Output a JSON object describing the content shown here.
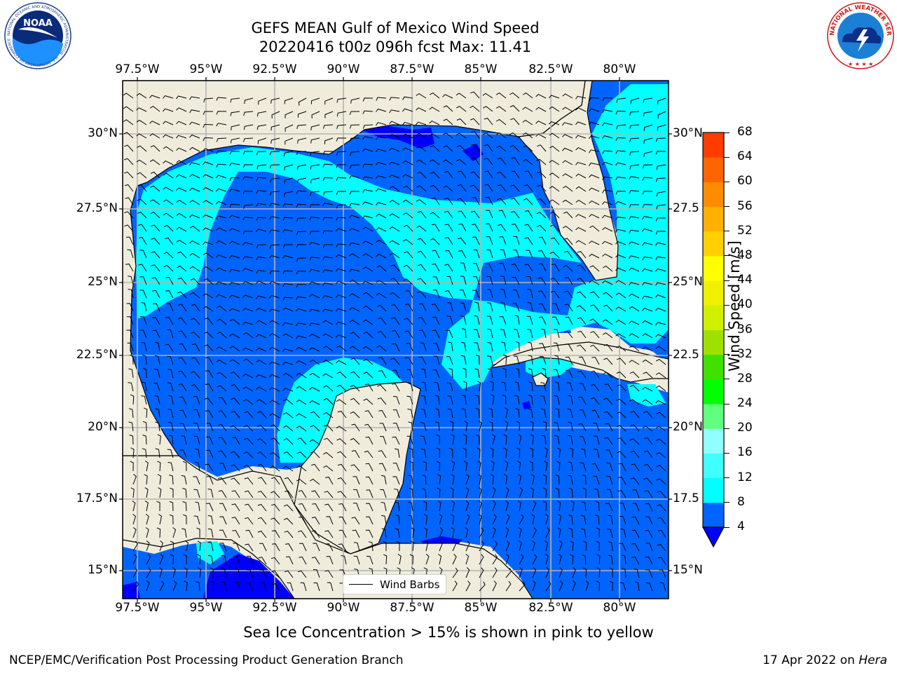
{
  "title": {
    "line1": "GEFS MEAN Gulf of Mexico Wind Speed",
    "line2": "20220416 t00z 096h fcst   Max: 11.41"
  },
  "logos": {
    "noaa": {
      "text": "NOAA",
      "ring": "NATIONAL OCEANIC AND ATMOSPHERIC ADMINISTRATION · U.S. DEPARTMENT OF COMMERCE"
    },
    "nws": {
      "ring": "NATIONAL WEATHER SERVICE"
    }
  },
  "axes": {
    "lon_ticks": [
      "97.5°W",
      "95°W",
      "92.5°W",
      "90°W",
      "87.5°W",
      "85°W",
      "82.5°W",
      "80°W"
    ],
    "lat_ticks": [
      "30°N",
      "27.5°N",
      "25°N",
      "22.5°N",
      "20°N",
      "17.5°N",
      "15°N"
    ],
    "lat_ticks_right": [
      "30°N",
      "27.5",
      "25°N",
      "22.5",
      "20°N",
      "17.5",
      "15°N"
    ],
    "lon_range": [
      -98,
      -78
    ],
    "lat_range": [
      14,
      32
    ],
    "grid": true
  },
  "legend": {
    "label": "Wind Barbs",
    "placement": "bottom-center"
  },
  "colorbar": {
    "title": "Wind Speed [m/s]",
    "levels": [
      "4",
      "8",
      "12",
      "16",
      "20",
      "24",
      "28",
      "32",
      "36",
      "40",
      "44",
      "48",
      "52",
      "56",
      "60",
      "64",
      "68"
    ],
    "colors": [
      "#0064ff",
      "#00ffff",
      "#40ffff",
      "#90ffff",
      "#60ff80",
      "#00ff00",
      "#40e000",
      "#a0e000",
      "#d0f000",
      "#f0f000",
      "#ffff00",
      "#ffd000",
      "#ffb000",
      "#ff8c00",
      "#ff6400",
      "#ff3c00"
    ],
    "under_color": "#0000ff",
    "extend": "min"
  },
  "map_colors": {
    "land": "#efecdc",
    "speed_lt4": "#0000ff",
    "speed_4_8": "#0064ff",
    "speed_8_12": "#00ffff",
    "coast": "#000000",
    "grid": "#b4b4b4"
  },
  "subtitle": "Sea Ice Concentration > 15% is shown in pink to yellow",
  "footer": {
    "left": "NCEP/EMC/Verification Post Processing Product Generation Branch",
    "right_prefix": "17 Apr 2022 on ",
    "right_machine": "Hera"
  }
}
